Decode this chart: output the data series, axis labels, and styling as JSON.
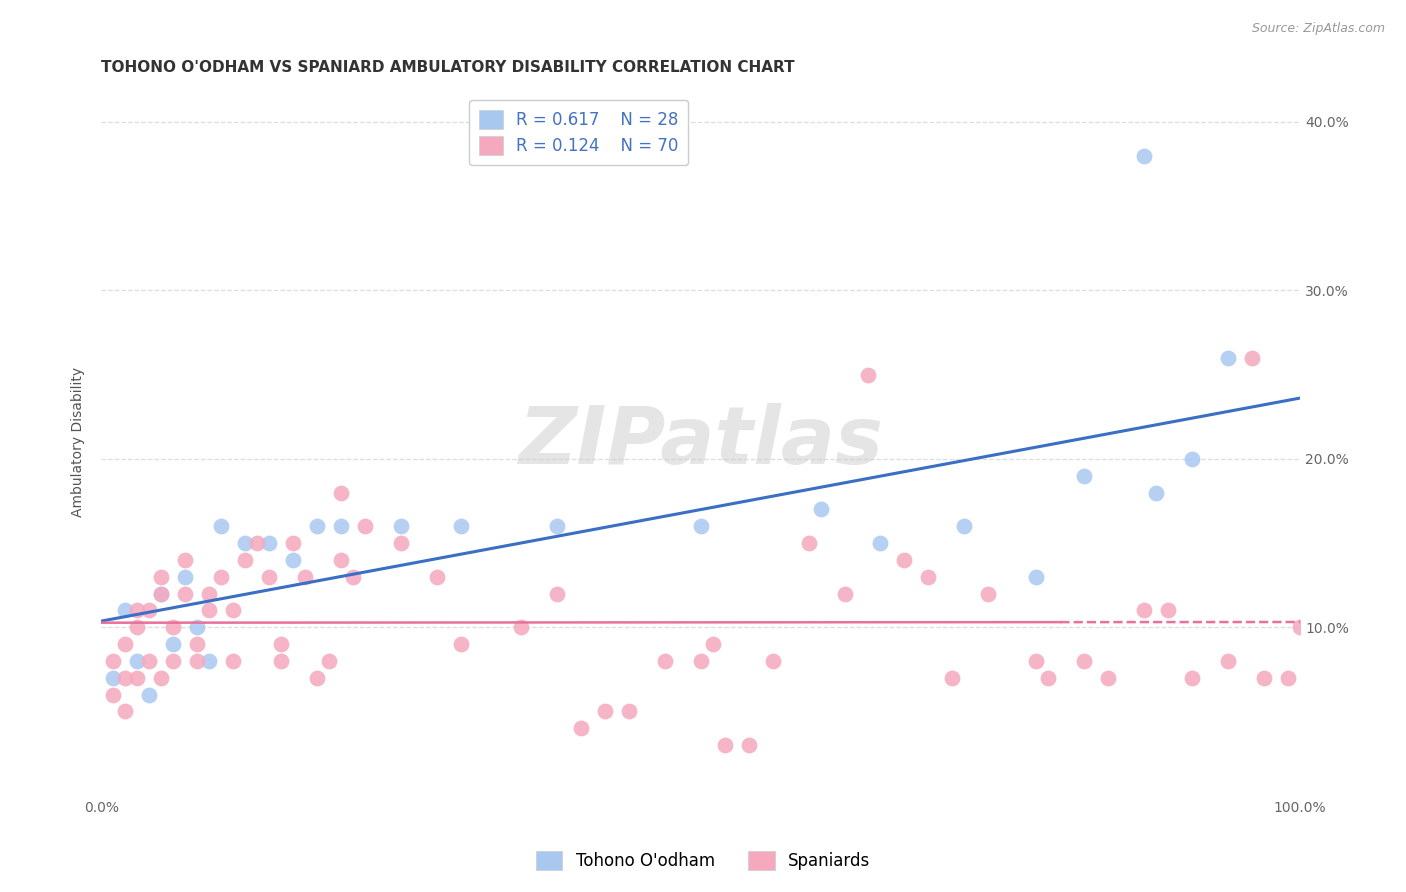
{
  "title": "TOHONO O'ODHAM VS SPANIARD AMBULATORY DISABILITY CORRELATION CHART",
  "source": "Source: ZipAtlas.com",
  "ylabel": "Ambulatory Disability",
  "xlim": [
    0,
    100
  ],
  "ylim": [
    0,
    42
  ],
  "yticks": [
    10,
    20,
    30,
    40
  ],
  "xticks": [
    0,
    100
  ],
  "blue_color": "#A8C8F0",
  "pink_color": "#F5A8BE",
  "blue_line_color": "#3A6FC4",
  "pink_line_color": "#E8709A",
  "legend_R_color": "#4472C4",
  "watermark_text": "ZIPatlas",
  "blue_label": "Tohono O'odham",
  "pink_label": "Spaniards",
  "blue_R": "0.617",
  "blue_N": "28",
  "pink_R": "0.124",
  "pink_N": "70",
  "blue_x": [
    1,
    2,
    3,
    4,
    5,
    6,
    7,
    8,
    9,
    10,
    12,
    14,
    16,
    18,
    20,
    25,
    30,
    38,
    50,
    60,
    65,
    72,
    78,
    82,
    87,
    88,
    91,
    94
  ],
  "blue_y": [
    7,
    11,
    8,
    6,
    12,
    9,
    13,
    10,
    8,
    16,
    15,
    15,
    14,
    16,
    16,
    16,
    16,
    16,
    16,
    17,
    15,
    16,
    13,
    19,
    38,
    18,
    20,
    26
  ],
  "pink_x": [
    1,
    1,
    2,
    2,
    2,
    3,
    3,
    3,
    4,
    4,
    5,
    5,
    5,
    6,
    6,
    7,
    7,
    8,
    8,
    9,
    9,
    10,
    11,
    11,
    12,
    13,
    14,
    15,
    15,
    16,
    17,
    18,
    19,
    20,
    20,
    21,
    22,
    25,
    28,
    30,
    35,
    38,
    40,
    42,
    44,
    47,
    50,
    51,
    52,
    54,
    56,
    59,
    62,
    64,
    67,
    69,
    71,
    74,
    78,
    79,
    82,
    84,
    87,
    89,
    91,
    94,
    96,
    97,
    99,
    100
  ],
  "pink_y": [
    8,
    6,
    9,
    7,
    5,
    10,
    11,
    7,
    11,
    8,
    12,
    13,
    7,
    10,
    8,
    12,
    14,
    9,
    8,
    11,
    12,
    13,
    11,
    8,
    14,
    15,
    13,
    9,
    8,
    15,
    13,
    7,
    8,
    14,
    18,
    13,
    16,
    15,
    13,
    9,
    10,
    12,
    4,
    5,
    5,
    8,
    8,
    9,
    3,
    3,
    8,
    15,
    12,
    25,
    14,
    13,
    7,
    12,
    8,
    7,
    8,
    7,
    11,
    11,
    7,
    8,
    26,
    7,
    7,
    10
  ],
  "background_color": "#FFFFFF",
  "grid_color": "#DDDDDD",
  "title_fontsize": 11,
  "axis_label_fontsize": 10,
  "tick_fontsize": 10,
  "legend_fontsize": 12,
  "scatter_size": 130,
  "scatter_alpha": 0.85
}
